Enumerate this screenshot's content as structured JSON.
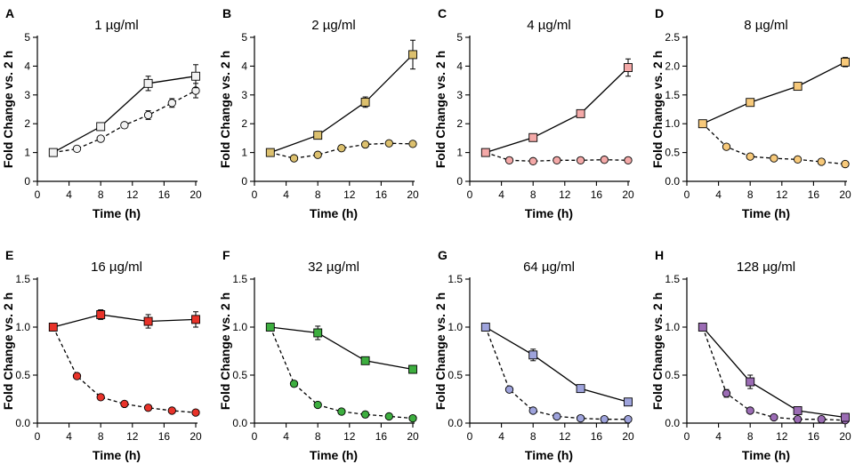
{
  "figure": {
    "x_label": "Time (h)",
    "y_label": "Fold Change vs. 2 h"
  },
  "chart_data": [
    {
      "panel": "A",
      "title": "1 µg/ml",
      "type": "line",
      "xlabel": "Time (h)",
      "ylabel": "Fold Change vs. 2 h",
      "xlim": [
        0,
        20
      ],
      "ylim": [
        0,
        5
      ],
      "xticks": [
        0,
        4,
        8,
        12,
        16,
        20
      ],
      "yticks": [
        0,
        1,
        2,
        3,
        4,
        5
      ],
      "ytick_labels": [
        "0",
        "1",
        "2",
        "3",
        "4",
        "5"
      ],
      "color": "#f2f2f2",
      "series": [
        {
          "name": "square-solid",
          "marker": "square",
          "line": "solid",
          "x": [
            2,
            8,
            14,
            20
          ],
          "y": [
            1.0,
            1.9,
            3.4,
            3.65
          ],
          "err": [
            0.04,
            0.08,
            0.25,
            0.4
          ]
        },
        {
          "name": "circle-dashed",
          "marker": "circle",
          "line": "dashed",
          "x": [
            2,
            5,
            8,
            11,
            14,
            17,
            20
          ],
          "y": [
            1.0,
            1.13,
            1.48,
            1.95,
            2.3,
            2.72,
            3.15
          ],
          "err": [
            0.03,
            0.05,
            0.06,
            0.1,
            0.15,
            0.15,
            0.25
          ]
        }
      ]
    },
    {
      "panel": "B",
      "title": "2 µg/ml",
      "type": "line",
      "xlabel": "Time (h)",
      "ylabel": "Fold Change vs. 2 h",
      "xlim": [
        0,
        20
      ],
      "ylim": [
        0,
        5
      ],
      "xticks": [
        0,
        4,
        8,
        12,
        16,
        20
      ],
      "yticks": [
        0,
        1,
        2,
        3,
        4,
        5
      ],
      "ytick_labels": [
        "0",
        "1",
        "2",
        "3",
        "4",
        "5"
      ],
      "color": "#dcc06e",
      "series": [
        {
          "name": "square-solid",
          "marker": "square",
          "line": "solid",
          "x": [
            2,
            8,
            14,
            20
          ],
          "y": [
            1.0,
            1.6,
            2.75,
            4.4
          ],
          "err": [
            0.04,
            0.08,
            0.18,
            0.5
          ]
        },
        {
          "name": "circle-dashed",
          "marker": "circle",
          "line": "dashed",
          "x": [
            2,
            5,
            8,
            11,
            14,
            17,
            20
          ],
          "y": [
            1.0,
            0.8,
            0.92,
            1.15,
            1.28,
            1.32,
            1.3
          ],
          "err": [
            0.02,
            0.03,
            0.04,
            0.05,
            0.05,
            0.05,
            0.05
          ]
        }
      ]
    },
    {
      "panel": "C",
      "title": "4 µg/ml",
      "type": "line",
      "xlabel": "Time (h)",
      "ylabel": "Fold Change vs. 2 h",
      "xlim": [
        0,
        20
      ],
      "ylim": [
        0,
        5
      ],
      "xticks": [
        0,
        4,
        8,
        12,
        16,
        20
      ],
      "yticks": [
        0,
        1,
        2,
        3,
        4,
        5
      ],
      "ytick_labels": [
        "0",
        "1",
        "2",
        "3",
        "4",
        "5"
      ],
      "color": "#f4a9a8",
      "series": [
        {
          "name": "square-solid",
          "marker": "square",
          "line": "solid",
          "x": [
            2,
            8,
            14,
            20
          ],
          "y": [
            1.0,
            1.52,
            2.35,
            3.95
          ],
          "err": [
            0.04,
            0.06,
            0.1,
            0.3
          ]
        },
        {
          "name": "circle-dashed",
          "marker": "circle",
          "line": "dashed",
          "x": [
            2,
            5,
            8,
            11,
            14,
            17,
            20
          ],
          "y": [
            1.0,
            0.73,
            0.7,
            0.73,
            0.73,
            0.75,
            0.73
          ],
          "err": [
            0.02,
            0.03,
            0.03,
            0.03,
            0.03,
            0.03,
            0.03
          ]
        }
      ]
    },
    {
      "panel": "D",
      "title": "8 µg/ml",
      "type": "line",
      "xlabel": "Time (h)",
      "ylabel": "Fold Change vs. 2 h",
      "xlim": [
        0,
        20
      ],
      "ylim": [
        0,
        2.5
      ],
      "xticks": [
        0,
        4,
        8,
        12,
        16,
        20
      ],
      "yticks": [
        0,
        0.5,
        1,
        1.5,
        2,
        2.5
      ],
      "ytick_labels": [
        "0.0",
        "0.5",
        "1.0",
        "1.5",
        "2.0",
        "2.5"
      ],
      "color": "#f7c97a",
      "series": [
        {
          "name": "square-solid",
          "marker": "square",
          "line": "solid",
          "x": [
            2,
            8,
            14,
            20
          ],
          "y": [
            1.0,
            1.37,
            1.65,
            2.07
          ],
          "err": [
            0.02,
            0.03,
            0.03,
            0.08
          ]
        },
        {
          "name": "circle-dashed",
          "marker": "circle",
          "line": "dashed",
          "x": [
            2,
            5,
            8,
            11,
            14,
            17,
            20
          ],
          "y": [
            1.0,
            0.6,
            0.43,
            0.4,
            0.38,
            0.34,
            0.3
          ],
          "err": [
            0.02,
            0.02,
            0.02,
            0.02,
            0.02,
            0.02,
            0.02
          ]
        }
      ]
    },
    {
      "panel": "E",
      "title": "16 µg/ml",
      "type": "line",
      "xlabel": "Time (h)",
      "ylabel": "Fold Change vs. 2 h",
      "xlim": [
        0,
        20
      ],
      "ylim": [
        0,
        1.5
      ],
      "xticks": [
        0,
        4,
        8,
        12,
        16,
        20
      ],
      "yticks": [
        0,
        0.5,
        1,
        1.5
      ],
      "ytick_labels": [
        "0.0",
        "0.5",
        "1.0",
        "1.5"
      ],
      "color": "#e8332a",
      "series": [
        {
          "name": "square-solid",
          "marker": "square",
          "line": "solid",
          "x": [
            2,
            8,
            14,
            20
          ],
          "y": [
            1.0,
            1.13,
            1.06,
            1.08
          ],
          "err": [
            0.01,
            0.05,
            0.07,
            0.08
          ]
        },
        {
          "name": "circle-dashed",
          "marker": "circle",
          "line": "dashed",
          "x": [
            2,
            5,
            8,
            11,
            14,
            17,
            20
          ],
          "y": [
            1.0,
            0.49,
            0.27,
            0.2,
            0.16,
            0.13,
            0.11
          ],
          "err": [
            0.01,
            0.01,
            0.01,
            0.01,
            0.01,
            0.01,
            0.01
          ]
        }
      ]
    },
    {
      "panel": "F",
      "title": "32 µg/ml",
      "type": "line",
      "xlabel": "Time (h)",
      "ylabel": "Fold Change vs. 2 h",
      "xlim": [
        0,
        20
      ],
      "ylim": [
        0,
        1.5
      ],
      "xticks": [
        0,
        4,
        8,
        12,
        16,
        20
      ],
      "yticks": [
        0,
        0.5,
        1,
        1.5
      ],
      "ytick_labels": [
        "0.0",
        "0.5",
        "1.0",
        "1.5"
      ],
      "color": "#3dae3f",
      "series": [
        {
          "name": "square-solid",
          "marker": "square",
          "line": "solid",
          "x": [
            2,
            8,
            14,
            20
          ],
          "y": [
            1.0,
            0.94,
            0.65,
            0.56
          ],
          "err": [
            0.01,
            0.07,
            0.03,
            0.04
          ]
        },
        {
          "name": "circle-dashed",
          "marker": "circle",
          "line": "dashed",
          "x": [
            2,
            5,
            8,
            11,
            14,
            17,
            20
          ],
          "y": [
            1.0,
            0.41,
            0.19,
            0.12,
            0.09,
            0.07,
            0.05
          ],
          "err": [
            0.01,
            0.01,
            0.01,
            0.01,
            0.01,
            0.01,
            0.01
          ]
        }
      ]
    },
    {
      "panel": "G",
      "title": "64 µg/ml",
      "type": "line",
      "xlabel": "Time (h)",
      "ylabel": "Fold Change vs. 2 h",
      "xlim": [
        0,
        20
      ],
      "ylim": [
        0,
        1.5
      ],
      "xticks": [
        0,
        4,
        8,
        12,
        16,
        20
      ],
      "yticks": [
        0,
        0.5,
        1,
        1.5
      ],
      "ytick_labels": [
        "0.0",
        "0.5",
        "1.0",
        "1.5"
      ],
      "color": "#9ea3dc",
      "series": [
        {
          "name": "square-solid",
          "marker": "square",
          "line": "solid",
          "x": [
            2,
            8,
            14,
            20
          ],
          "y": [
            1.0,
            0.71,
            0.36,
            0.22
          ],
          "err": [
            0.01,
            0.06,
            0.02,
            0.02
          ]
        },
        {
          "name": "circle-dashed",
          "marker": "circle",
          "line": "dashed",
          "x": [
            2,
            5,
            8,
            11,
            14,
            17,
            20
          ],
          "y": [
            1.0,
            0.35,
            0.13,
            0.07,
            0.05,
            0.04,
            0.04
          ],
          "err": [
            0.01,
            0.01,
            0.01,
            0.01,
            0.01,
            0.01,
            0.01
          ]
        }
      ]
    },
    {
      "panel": "H",
      "title": "128 µg/ml",
      "type": "line",
      "xlabel": "Time (h)",
      "ylabel": "Fold Change vs. 2 h",
      "xlim": [
        0,
        20
      ],
      "ylim": [
        0,
        1.5
      ],
      "xticks": [
        0,
        4,
        8,
        12,
        16,
        20
      ],
      "yticks": [
        0,
        0.5,
        1,
        1.5
      ],
      "ytick_labels": [
        "0.0",
        "0.5",
        "1.0",
        "1.5"
      ],
      "color": "#9b6cb4",
      "series": [
        {
          "name": "square-solid",
          "marker": "square",
          "line": "solid",
          "x": [
            2,
            8,
            14,
            20
          ],
          "y": [
            1.0,
            0.43,
            0.13,
            0.06
          ],
          "err": [
            0.01,
            0.07,
            0.02,
            0.01
          ]
        },
        {
          "name": "circle-dashed",
          "marker": "circle",
          "line": "dashed",
          "x": [
            2,
            5,
            8,
            11,
            14,
            17,
            20
          ],
          "y": [
            1.0,
            0.31,
            0.13,
            0.06,
            0.04,
            0.04,
            0.03
          ],
          "err": [
            0.01,
            0.04,
            0.01,
            0.01,
            0.01,
            0.01,
            0.01
          ]
        }
      ]
    }
  ]
}
